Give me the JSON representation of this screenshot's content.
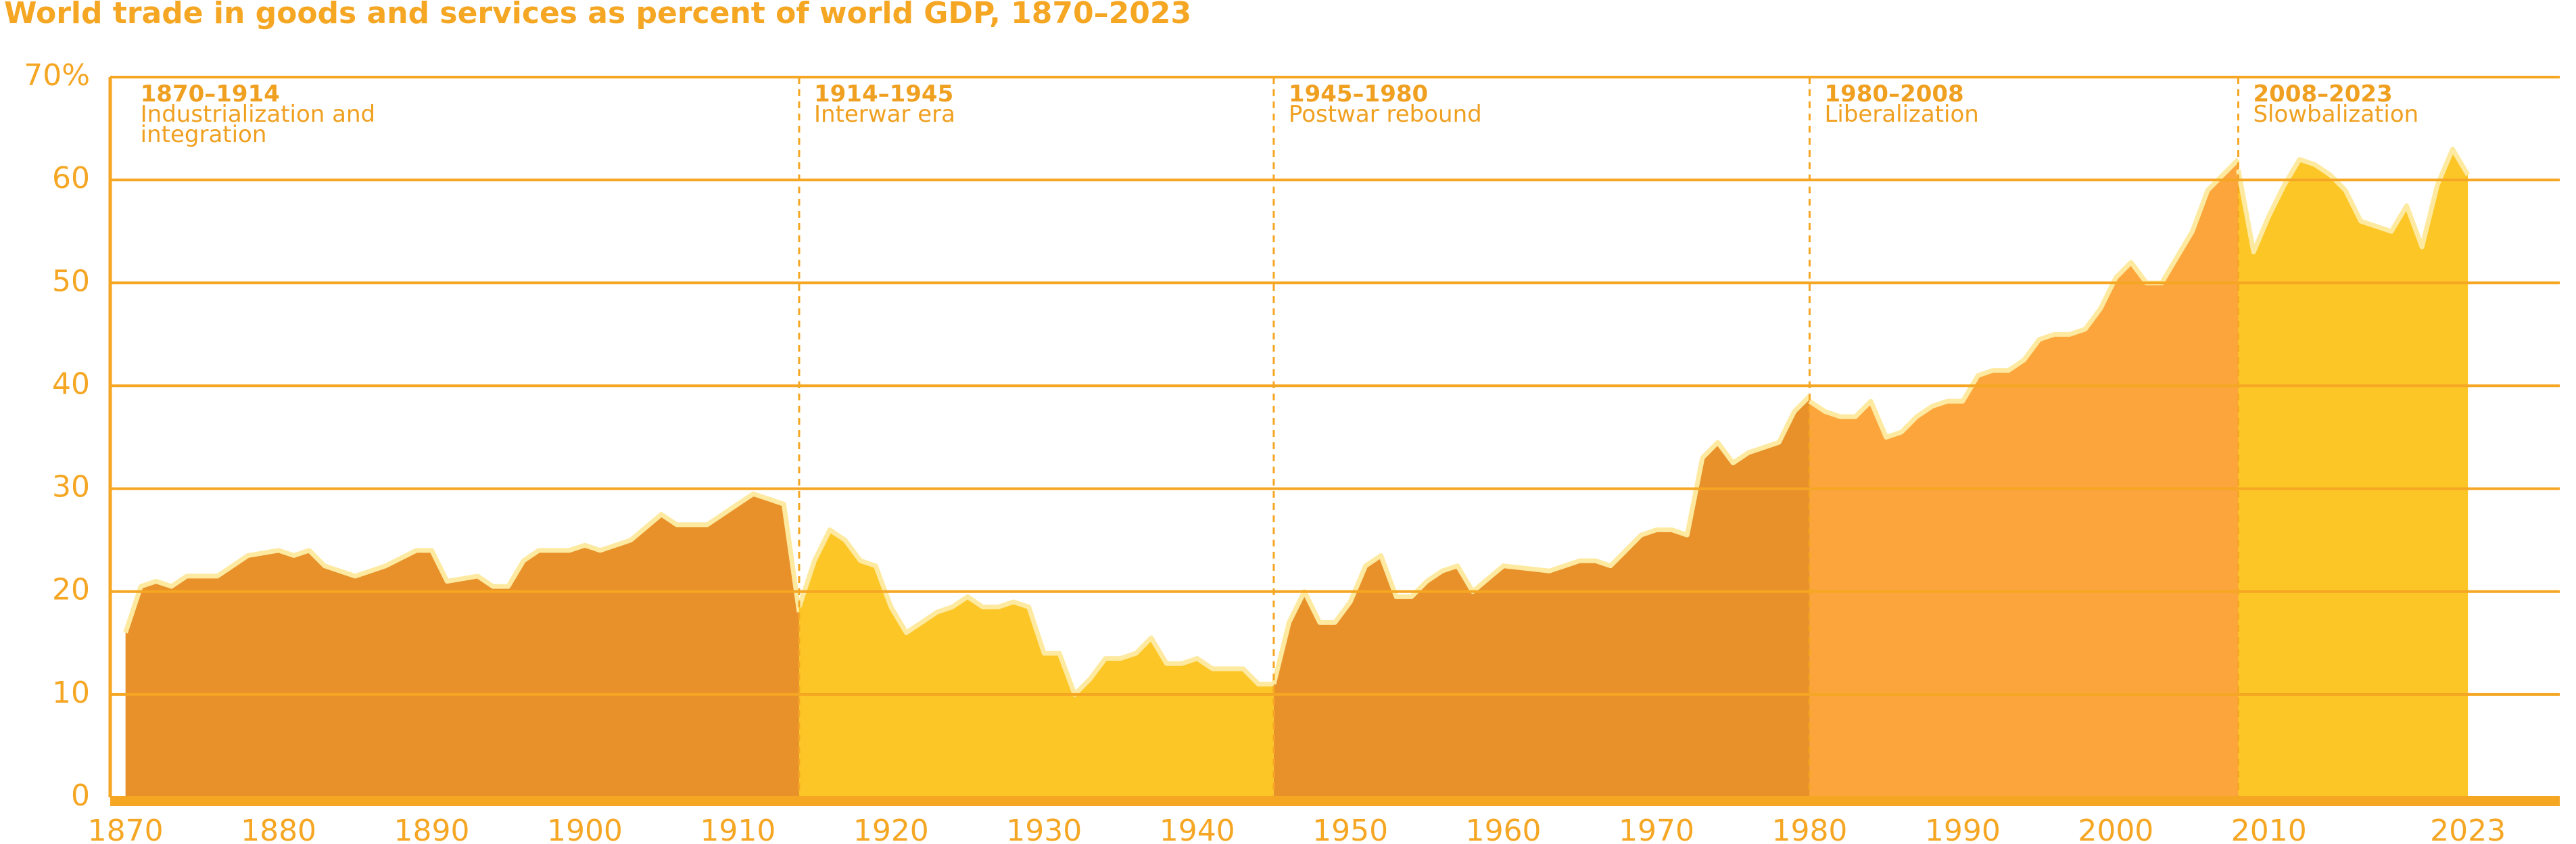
{
  "chart_data": {
    "type": "area",
    "title": "World trade in goods and services as percent of world GDP, 1870–2023",
    "xlim": [
      1869,
      2029
    ],
    "xticks": [
      1870,
      1880,
      1890,
      1900,
      1910,
      1920,
      1930,
      1940,
      1950,
      1960,
      1970,
      1980,
      1990,
      2000,
      2010,
      2023
    ],
    "ylim": [
      0,
      70
    ],
    "yticks": [
      0,
      10,
      20,
      30,
      40,
      50,
      60,
      {
        "value": 70,
        "label": "70%"
      }
    ],
    "grid": true,
    "series": [
      {
        "name": "1870–1914",
        "description": "Industrialization and integration",
        "color": "#e8912a",
        "x": [
          1870,
          1871,
          1872,
          1873,
          1874,
          1876,
          1878,
          1880,
          1881,
          1882,
          1883,
          1885,
          1887,
          1889,
          1890,
          1891,
          1893,
          1894,
          1895,
          1896,
          1897,
          1899,
          1900,
          1901,
          1903,
          1905,
          1906,
          1908,
          1911,
          1913,
          1914
        ],
        "values": [
          16,
          20.5,
          21,
          20.5,
          21.5,
          21.5,
          23.5,
          24,
          23.5,
          24,
          22.5,
          21.5,
          22.5,
          24,
          24,
          21,
          21.5,
          20.5,
          20.5,
          23,
          24,
          24,
          24.5,
          24,
          25,
          27.5,
          26.5,
          26.5,
          29.5,
          28.5,
          18
        ]
      },
      {
        "name": "1914–1945",
        "description": "Interwar era",
        "color": "#fdc627",
        "x": [
          1914,
          1915,
          1916,
          1917,
          1918,
          1919,
          1920,
          1921,
          1922,
          1923,
          1924,
          1925,
          1926,
          1927,
          1928,
          1929,
          1930,
          1931,
          1932,
          1933,
          1934,
          1935,
          1936,
          1937,
          1938,
          1939,
          1940,
          1941,
          1942,
          1943,
          1944,
          1945
        ],
        "values": [
          18.5,
          23,
          26,
          25,
          23,
          22.5,
          18.5,
          16,
          17,
          18,
          18.5,
          19.5,
          18.5,
          18.5,
          19,
          18.5,
          14,
          14,
          10,
          11.5,
          13.5,
          13.5,
          14,
          15.5,
          13,
          13,
          13.5,
          12.5,
          12.5,
          12.5,
          11,
          11
        ]
      },
      {
        "name": "1945–1980",
        "description": "Postwar rebound",
        "color": "#e8912a",
        "x": [
          1945,
          1946,
          1947,
          1948,
          1949,
          1950,
          1951,
          1952,
          1953,
          1954,
          1955,
          1956,
          1957,
          1958,
          1960,
          1963,
          1964,
          1965,
          1966,
          1967,
          1968,
          1969,
          1970,
          1971,
          1972,
          1973,
          1974,
          1975,
          1976,
          1977,
          1978,
          1979,
          1980
        ],
        "values": [
          11,
          17,
          20,
          17,
          17,
          19,
          22.5,
          23.5,
          19.5,
          19.5,
          21,
          22,
          22.5,
          20,
          22.5,
          22,
          22.5,
          23,
          23,
          22.5,
          24,
          25.5,
          26,
          26,
          25.5,
          33,
          34.5,
          32.5,
          33.5,
          34,
          34.5,
          37.5,
          39
        ]
      },
      {
        "name": "1980–2008",
        "description": "Liberalization",
        "color": "#fba53c",
        "x": [
          1980,
          1981,
          1982,
          1983,
          1984,
          1985,
          1986,
          1987,
          1988,
          1989,
          1990,
          1991,
          1992,
          1993,
          1994,
          1995,
          1996,
          1997,
          1998,
          1999,
          2000,
          2001,
          2002,
          2003,
          2004,
          2005,
          2006,
          2007,
          2008
        ],
        "values": [
          38.5,
          37.5,
          37,
          37,
          38.5,
          35,
          35.5,
          37,
          38,
          38.5,
          38.5,
          41,
          41.5,
          41.5,
          42.5,
          44.5,
          45,
          45,
          45.5,
          47.5,
          50.5,
          52,
          50,
          50,
          52.5,
          55,
          59,
          60.5,
          62
        ]
      },
      {
        "name": "2008–2023",
        "description": "Slowbalization",
        "color": "#fdc627",
        "x": [
          2008,
          2009,
          2010,
          2011,
          2012,
          2013,
          2014,
          2015,
          2016,
          2017,
          2018,
          2019,
          2020,
          2021,
          2022,
          2023
        ],
        "values": [
          61,
          53,
          56.5,
          59.5,
          62,
          61.5,
          60.5,
          59,
          56,
          55.5,
          55,
          57.5,
          53.5,
          59.5,
          63,
          60.5
        ]
      }
    ]
  }
}
